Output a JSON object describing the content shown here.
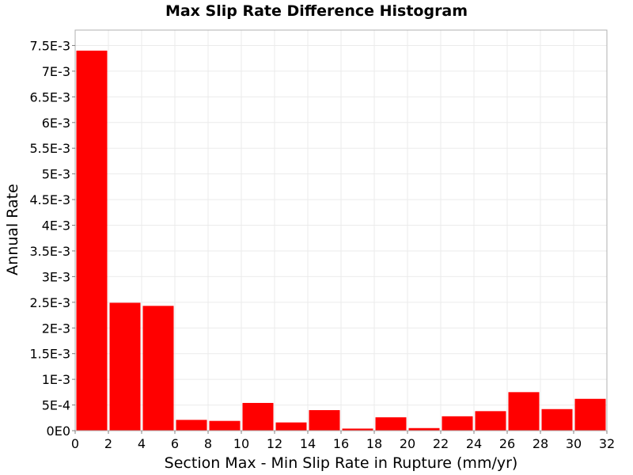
{
  "chart_data": {
    "type": "bar",
    "title": "Max Slip Rate Difference Histogram",
    "xlabel": "Section Max - Min Slip Rate in Rupture (mm/yr)",
    "ylabel": "Annual Rate",
    "xlim": [
      0,
      32
    ],
    "ylim": [
      0,
      0.0078
    ],
    "bin_width": 2,
    "bars": [
      {
        "x": 1,
        "value": 0.0074
      },
      {
        "x": 3,
        "value": 0.00249
      },
      {
        "x": 5,
        "value": 0.00243
      },
      {
        "x": 7,
        "value": 0.00021
      },
      {
        "x": 9,
        "value": 0.00019
      },
      {
        "x": 11,
        "value": 0.00054
      },
      {
        "x": 13,
        "value": 0.00016
      },
      {
        "x": 15,
        "value": 0.0004
      },
      {
        "x": 17,
        "value": 4e-05
      },
      {
        "x": 19,
        "value": 0.00026
      },
      {
        "x": 21,
        "value": 5e-05
      },
      {
        "x": 23,
        "value": 0.00028
      },
      {
        "x": 25,
        "value": 0.00038
      },
      {
        "x": 27,
        "value": 0.00075
      },
      {
        "x": 29,
        "value": 0.00042
      },
      {
        "x": 31,
        "value": 0.00062
      }
    ],
    "x_ticks": [
      {
        "value": 0,
        "label": "0"
      },
      {
        "value": 2,
        "label": "2"
      },
      {
        "value": 4,
        "label": "4"
      },
      {
        "value": 6,
        "label": "6"
      },
      {
        "value": 8,
        "label": "8"
      },
      {
        "value": 10,
        "label": "10"
      },
      {
        "value": 12,
        "label": "12"
      },
      {
        "value": 14,
        "label": "14"
      },
      {
        "value": 16,
        "label": "16"
      },
      {
        "value": 18,
        "label": "18"
      },
      {
        "value": 20,
        "label": "20"
      },
      {
        "value": 22,
        "label": "22"
      },
      {
        "value": 24,
        "label": "24"
      },
      {
        "value": 26,
        "label": "26"
      },
      {
        "value": 28,
        "label": "28"
      },
      {
        "value": 30,
        "label": "30"
      },
      {
        "value": 32,
        "label": "32"
      }
    ],
    "y_ticks": [
      {
        "value": 0,
        "label": "0E0"
      },
      {
        "value": 0.0005,
        "label": "5E-4"
      },
      {
        "value": 0.001,
        "label": "1E-3"
      },
      {
        "value": 0.0015,
        "label": "1.5E-3"
      },
      {
        "value": 0.002,
        "label": "2E-3"
      },
      {
        "value": 0.0025,
        "label": "2.5E-3"
      },
      {
        "value": 0.003,
        "label": "3E-3"
      },
      {
        "value": 0.0035,
        "label": "3.5E-3"
      },
      {
        "value": 0.004,
        "label": "4E-3"
      },
      {
        "value": 0.0045,
        "label": "4.5E-3"
      },
      {
        "value": 0.005,
        "label": "5E-3"
      },
      {
        "value": 0.0055,
        "label": "5.5E-3"
      },
      {
        "value": 0.006,
        "label": "6E-3"
      },
      {
        "value": 0.0065,
        "label": "6.5E-3"
      },
      {
        "value": 0.007,
        "label": "7E-3"
      },
      {
        "value": 0.0075,
        "label": "7.5E-3"
      }
    ],
    "grid": true,
    "legend": "none",
    "colors": {
      "bar": "#ff0000",
      "grid": "#ebebeb",
      "border": "#b0b0b0"
    }
  }
}
